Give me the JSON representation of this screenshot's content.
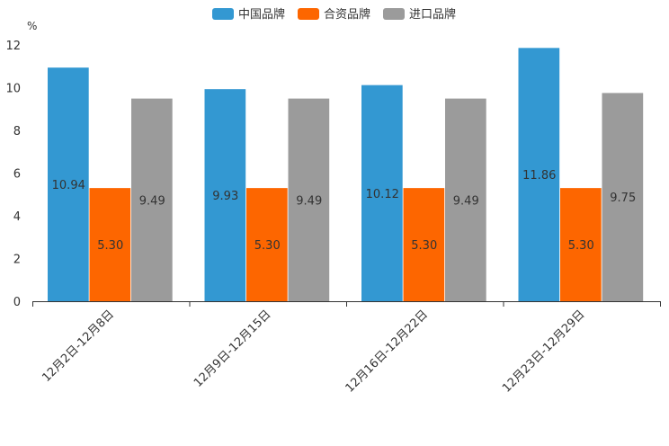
{
  "chart_data": {
    "type": "bar",
    "title": "",
    "xlabel": "",
    "ylabel": "%",
    "ylim": [
      0,
      12
    ],
    "yticks": [
      0,
      2,
      4,
      6,
      8,
      10,
      12
    ],
    "grid": false,
    "legend_position": "top-center",
    "categories": [
      "12月2日-12月8日",
      "12月9日-12月15日",
      "12月16日-12月22日",
      "12月23日-12月29日"
    ],
    "series": [
      {
        "name": "中国品牌",
        "color": "#3398d2",
        "values": [
          10.94,
          9.93,
          10.12,
          11.86
        ],
        "labels": [
          "10.94",
          "9.93",
          "10.12",
          "11.86"
        ]
      },
      {
        "name": "合资品牌",
        "color": "#fd6600",
        "values": [
          5.3,
          5.3,
          5.3,
          5.3
        ],
        "labels": [
          "5.30",
          "5.30",
          "5.30",
          "5.30"
        ]
      },
      {
        "name": "进口品牌",
        "color": "#9b9b9b",
        "values": [
          9.49,
          9.49,
          9.49,
          9.75
        ],
        "labels": [
          "9.49",
          "9.49",
          "9.49",
          "9.75"
        ]
      }
    ]
  }
}
